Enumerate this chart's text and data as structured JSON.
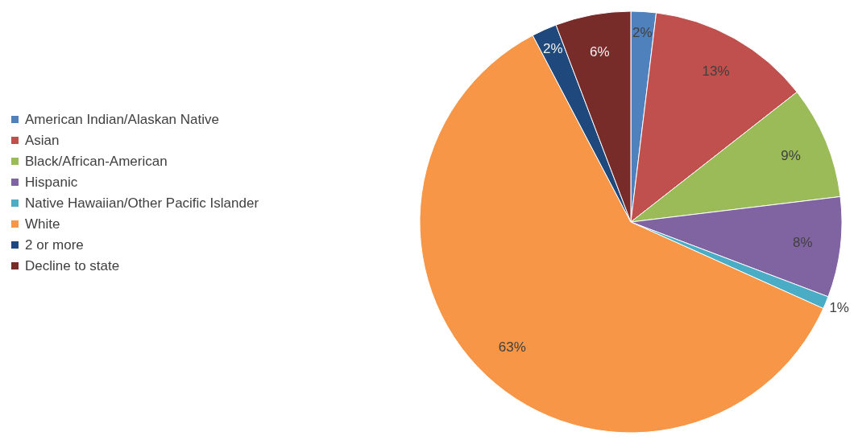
{
  "chart_data": {
    "type": "pie",
    "categories": [
      "American Indian/Alaskan Native",
      "Asian",
      "Black/African-American",
      "Hispanic",
      "Native Hawaiian/Other Pacific Islander",
      "White",
      "2 or more",
      "Decline to state"
    ],
    "values": [
      2,
      13,
      9,
      8,
      1,
      63,
      2,
      6
    ],
    "colors": [
      "#4f81bd",
      "#c0504d",
      "#9bbb59",
      "#8064a2",
      "#4bacc6",
      "#f79646",
      "#1f497d",
      "#772c2a"
    ],
    "value_labels": [
      "2%",
      "13%",
      "9%",
      "8%",
      "1%",
      "63%",
      "2%",
      "6%"
    ],
    "legend": "left"
  }
}
